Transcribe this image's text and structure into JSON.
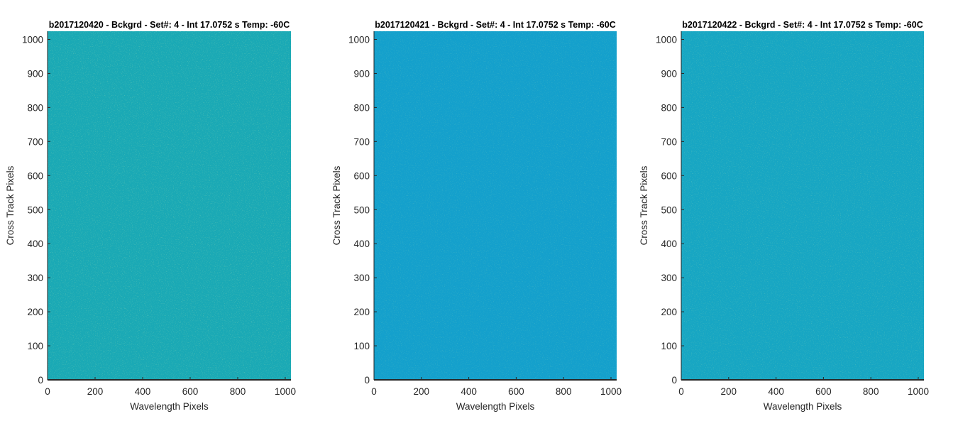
{
  "chart_data": [
    {
      "type": "heatmap",
      "title": "b2017120420 - Bckgrd - Set#: 4 - Int 17.0752 s Temp: -60C",
      "xlabel": "Wavelength Pixels",
      "ylabel": "Cross Track Pixels",
      "xlim": [
        0,
        1024
      ],
      "ylim": [
        0,
        1024
      ],
      "xticks": [
        0,
        200,
        400,
        600,
        800,
        1000
      ],
      "yticks": [
        0,
        100,
        200,
        300,
        400,
        500,
        600,
        700,
        800,
        900,
        1000
      ],
      "base_color": "#1aa9b5",
      "grid": false
    },
    {
      "type": "heatmap",
      "title": "b2017120421 - Bckgrd - Set#: 4 - Int 17.0752 s Temp: -60C",
      "xlabel": "Wavelength Pixels",
      "ylabel": "Cross Track Pixels",
      "xlim": [
        0,
        1024
      ],
      "ylim": [
        0,
        1024
      ],
      "xticks": [
        0,
        200,
        400,
        600,
        800,
        1000
      ],
      "yticks": [
        0,
        100,
        200,
        300,
        400,
        500,
        600,
        700,
        800,
        900,
        1000
      ],
      "base_color": "#14a0cc",
      "grid": false
    },
    {
      "type": "heatmap",
      "title": "b2017120422 - Bckgrd - Set#: 4 - Int 17.0752 s Temp: -60C",
      "xlabel": "Wavelength Pixels",
      "ylabel": "Cross Track Pixels",
      "xlim": [
        0,
        1024
      ],
      "ylim": [
        0,
        1024
      ],
      "xticks": [
        0,
        200,
        400,
        600,
        800,
        1000
      ],
      "yticks": [
        0,
        100,
        200,
        300,
        400,
        500,
        600,
        700,
        800,
        900,
        1000
      ],
      "base_color": "#17a6c3",
      "grid": false
    }
  ]
}
